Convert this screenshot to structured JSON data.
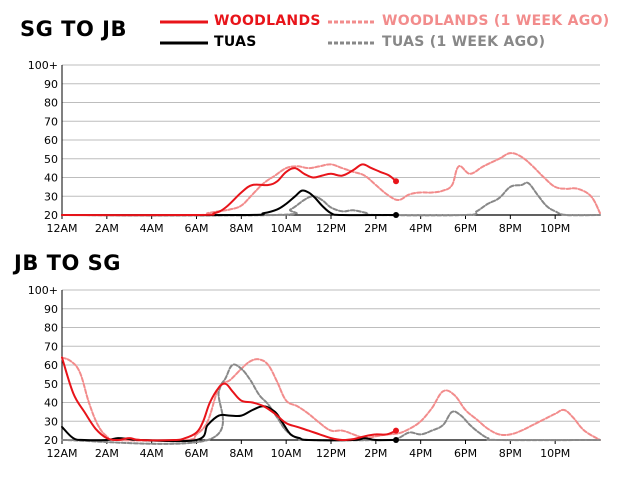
{
  "charts": [
    {
      "title": "SG TO JB"
    },
    {
      "title": "JB TO SG"
    }
  ],
  "legend": [
    {
      "label": "WOODLANDS",
      "color": "#e8141a",
      "dashed": false
    },
    {
      "label": "WOODLANDS (1 WEEK AGO)",
      "color": "#f28c8c",
      "dashed": true
    },
    {
      "label": "TUAS",
      "color": "#000000",
      "dashed": false
    },
    {
      "label": "TUAS (1 WEEK AGO)",
      "color": "#888888",
      "dashed": true
    }
  ],
  "chart_data": [
    {
      "type": "line",
      "title": "SG TO JB",
      "ylim": [
        20,
        100
      ],
      "xlim": [
        0,
        24
      ],
      "yticks": [
        "20",
        "30",
        "40",
        "50",
        "60",
        "70",
        "80",
        "90",
        "100+"
      ],
      "xticks": [
        "12AM",
        "2AM",
        "4AM",
        "6AM",
        "8AM",
        "10AM",
        "12PM",
        "2PM",
        "4PM",
        "6PM",
        "8PM",
        "10PM"
      ],
      "grid": true,
      "series": [
        {
          "name": "WOODLANDS",
          "color": "#e8141a",
          "dashed": false,
          "marker_end": true,
          "points": [
            [
              0,
              20
            ],
            [
              6,
              20
            ],
            [
              6.8,
              21
            ],
            [
              7.3,
              24
            ],
            [
              8,
              32
            ],
            [
              8.5,
              36
            ],
            [
              9.2,
              36
            ],
            [
              9.6,
              38
            ],
            [
              10,
              43
            ],
            [
              10.4,
              45
            ],
            [
              10.8,
              42
            ],
            [
              11.2,
              40
            ],
            [
              11.6,
              41
            ],
            [
              12,
              42
            ],
            [
              12.5,
              41
            ],
            [
              13,
              44
            ],
            [
              13.4,
              47
            ],
            [
              13.8,
              45
            ],
            [
              14.2,
              43
            ],
            [
              14.6,
              41
            ],
            [
              14.9,
              38
            ]
          ]
        },
        {
          "name": "WOODLANDS (1 WEEK AGO)",
          "color": "#f28c8c",
          "dashed": true,
          "points": [
            [
              0,
              20
            ],
            [
              6,
              20
            ],
            [
              6.5,
              21
            ],
            [
              7,
              22
            ],
            [
              7.5,
              23
            ],
            [
              8,
              25
            ],
            [
              8.5,
              31
            ],
            [
              9,
              37
            ],
            [
              9.5,
              41
            ],
            [
              10,
              45
            ],
            [
              10.5,
              46
            ],
            [
              11,
              45
            ],
            [
              11.5,
              46
            ],
            [
              12,
              47
            ],
            [
              12.5,
              45
            ],
            [
              13,
              43
            ],
            [
              13.5,
              41
            ],
            [
              14,
              36
            ],
            [
              14.5,
              31
            ],
            [
              15,
              28
            ],
            [
              15.5,
              31
            ],
            [
              16,
              32
            ],
            [
              16.5,
              32
            ],
            [
              17,
              33
            ],
            [
              17.4,
              36
            ],
            [
              17.7,
              46
            ],
            [
              18.2,
              42
            ],
            [
              18.8,
              46
            ],
            [
              19.5,
              50
            ],
            [
              20,
              53
            ],
            [
              20.5,
              51
            ],
            [
              21,
              46
            ],
            [
              21.5,
              40
            ],
            [
              22,
              35
            ],
            [
              22.5,
              34
            ],
            [
              23,
              34
            ],
            [
              23.6,
              30
            ],
            [
              24,
              21
            ]
          ]
        },
        {
          "name": "TUAS",
          "color": "#000000",
          "dashed": false,
          "marker_end": true,
          "points": [
            [
              0,
              20
            ],
            [
              8,
              20
            ],
            [
              9,
              21
            ],
            [
              9.6,
              23
            ],
            [
              10,
              26
            ],
            [
              10.4,
              30
            ],
            [
              10.7,
              33
            ],
            [
              11,
              32
            ],
            [
              11.3,
              29
            ],
            [
              11.6,
              25
            ],
            [
              12,
              21
            ],
            [
              12.5,
              20
            ],
            [
              14.9,
              20
            ]
          ]
        },
        {
          "name": "TUAS (1 WEEK AGO)",
          "color": "#888888",
          "dashed": true,
          "points": [
            [
              0,
              20
            ],
            [
              9.5,
              20
            ],
            [
              10.2,
              23
            ],
            [
              10.8,
              28
            ],
            [
              11.2,
              30
            ],
            [
              11.6,
              28
            ],
            [
              12,
              24
            ],
            [
              12.5,
              22
            ],
            [
              13,
              22.5
            ],
            [
              13.6,
              21
            ],
            [
              14,
              20
            ],
            [
              18,
              20
            ],
            [
              18.5,
              22
            ],
            [
              19,
              26
            ],
            [
              19.5,
              29
            ],
            [
              20,
              35
            ],
            [
              20.5,
              36
            ],
            [
              20.8,
              37
            ],
            [
              21.2,
              31
            ],
            [
              21.6,
              25
            ],
            [
              22,
              22
            ],
            [
              22.5,
              20
            ],
            [
              24,
              20
            ]
          ]
        }
      ]
    },
    {
      "type": "line",
      "title": "JB TO SG",
      "ylim": [
        20,
        100
      ],
      "xlim": [
        0,
        24
      ],
      "yticks": [
        "20",
        "30",
        "40",
        "50",
        "60",
        "70",
        "80",
        "90",
        "100+"
      ],
      "xticks": [
        "12AM",
        "2AM",
        "4AM",
        "6AM",
        "8AM",
        "10AM",
        "12PM",
        "2PM",
        "4PM",
        "6PM",
        "8PM",
        "10PM"
      ],
      "grid": true,
      "series": [
        {
          "name": "WOODLANDS",
          "color": "#e8141a",
          "dashed": false,
          "marker_end": true,
          "points": [
            [
              0,
              64
            ],
            [
              0.5,
              45
            ],
            [
              1,
              35
            ],
            [
              1.5,
              26
            ],
            [
              2,
              21
            ],
            [
              2.5,
              20
            ],
            [
              3,
              21
            ],
            [
              3.5,
              20
            ],
            [
              5,
              20
            ],
            [
              5.5,
              21
            ],
            [
              6,
              24
            ],
            [
              6.3,
              30
            ],
            [
              6.6,
              40
            ],
            [
              7,
              48
            ],
            [
              7.3,
              50
            ],
            [
              7.6,
              46
            ],
            [
              8,
              41
            ],
            [
              8.5,
              40
            ],
            [
              9,
              38
            ],
            [
              9.5,
              34
            ],
            [
              10,
              29
            ],
            [
              10.5,
              27
            ],
            [
              11,
              25
            ],
            [
              11.5,
              23
            ],
            [
              12,
              21
            ],
            [
              12.5,
              20
            ],
            [
              13,
              20.5
            ],
            [
              13.5,
              22
            ],
            [
              14,
              23
            ],
            [
              14.5,
              23
            ],
            [
              14.9,
              25
            ]
          ]
        },
        {
          "name": "WOODLANDS (1 WEEK AGO)",
          "color": "#f28c8c",
          "dashed": true,
          "points": [
            [
              0,
              64
            ],
            [
              0.4,
              62
            ],
            [
              0.8,
              56
            ],
            [
              1.2,
              40
            ],
            [
              1.6,
              28
            ],
            [
              2,
              22
            ],
            [
              2.5,
              20
            ],
            [
              5.5,
              20
            ],
            [
              6,
              23
            ],
            [
              6.5,
              30
            ],
            [
              7,
              48
            ],
            [
              7.5,
              52
            ],
            [
              8,
              58
            ],
            [
              8.4,
              62
            ],
            [
              8.8,
              63
            ],
            [
              9.2,
              60
            ],
            [
              9.6,
              51
            ],
            [
              10,
              41
            ],
            [
              10.5,
              38
            ],
            [
              11,
              34
            ],
            [
              11.5,
              29
            ],
            [
              12,
              25
            ],
            [
              12.5,
              25
            ],
            [
              13,
              23
            ],
            [
              13.5,
              21
            ],
            [
              14,
              22
            ],
            [
              14.5,
              23
            ],
            [
              15,
              23.5
            ],
            [
              15.5,
              26
            ],
            [
              16,
              30
            ],
            [
              16.5,
              37
            ],
            [
              17,
              46
            ],
            [
              17.5,
              44
            ],
            [
              18,
              36
            ],
            [
              18.5,
              31
            ],
            [
              19,
              26
            ],
            [
              19.5,
              23
            ],
            [
              20,
              23
            ],
            [
              20.5,
              25
            ],
            [
              21,
              28
            ],
            [
              21.5,
              31
            ],
            [
              22,
              34
            ],
            [
              22.4,
              36
            ],
            [
              22.8,
              32
            ],
            [
              23.3,
              25
            ],
            [
              24,
              20
            ]
          ]
        },
        {
          "name": "TUAS",
          "color": "#000000",
          "dashed": false,
          "marker_end": true,
          "points": [
            [
              0,
              27
            ],
            [
              0.5,
              21
            ],
            [
              1,
              20
            ],
            [
              2,
              20
            ],
            [
              2.5,
              21
            ],
            [
              3,
              20.5
            ],
            [
              3.5,
              20
            ],
            [
              6,
              20
            ],
            [
              6.5,
              28
            ],
            [
              7,
              33
            ],
            [
              7.5,
              33
            ],
            [
              8,
              33
            ],
            [
              8.5,
              36
            ],
            [
              9,
              38
            ],
            [
              9.5,
              35
            ],
            [
              9.8,
              30
            ],
            [
              10.2,
              23
            ],
            [
              10.6,
              21
            ],
            [
              11,
              20
            ],
            [
              13,
              20
            ],
            [
              13.5,
              21
            ],
            [
              14,
              20
            ],
            [
              14.9,
              20
            ]
          ]
        },
        {
          "name": "TUAS (1 WEEK AGO)",
          "color": "#888888",
          "dashed": true,
          "points": [
            [
              0,
              20
            ],
            [
              6.5,
              20
            ],
            [
              7,
              46
            ],
            [
              7.3,
              53
            ],
            [
              7.6,
              60
            ],
            [
              8,
              58
            ],
            [
              8.4,
              52
            ],
            [
              8.8,
              44
            ],
            [
              9.2,
              39
            ],
            [
              9.6,
              32
            ],
            [
              10,
              25
            ],
            [
              10.5,
              21
            ],
            [
              11,
              20
            ],
            [
              14.5,
              20
            ],
            [
              15,
              21
            ],
            [
              15.5,
              24
            ],
            [
              16,
              23
            ],
            [
              16.5,
              25
            ],
            [
              17,
              28
            ],
            [
              17.4,
              35
            ],
            [
              17.8,
              33
            ],
            [
              18.2,
              28
            ],
            [
              18.6,
              24
            ],
            [
              19,
              21
            ],
            [
              19.5,
              20
            ],
            [
              24,
              20
            ]
          ]
        }
      ]
    }
  ]
}
